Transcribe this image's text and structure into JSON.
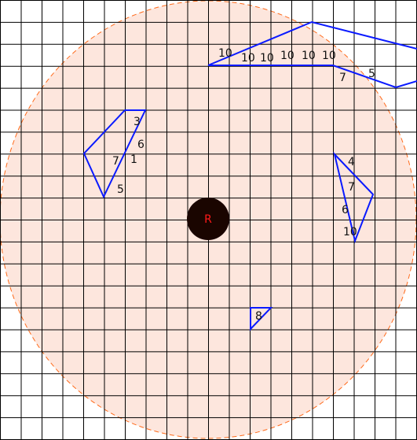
{
  "robot": {
    "label": "R",
    "body_color": "#1a0500",
    "label_color": "#ff1a1a"
  },
  "range": {
    "fill": "#fde6dd",
    "stroke": "#ff6a1a"
  },
  "grid": {
    "color": "#000000",
    "background": "#ffffff"
  },
  "obstacle_color": "#0a1aff",
  "obstacles": [
    {
      "name": "obstacle-top-right",
      "labels": [
        "10",
        "10",
        "10",
        "10",
        "10",
        "10",
        "7",
        "5"
      ]
    },
    {
      "name": "obstacle-left",
      "labels": [
        "3",
        "6",
        "7",
        "1",
        "5"
      ]
    },
    {
      "name": "obstacle-right",
      "labels": [
        "4",
        "7",
        "6",
        "10"
      ]
    },
    {
      "name": "obstacle-bottom",
      "labels": [
        "8"
      ]
    }
  ]
}
